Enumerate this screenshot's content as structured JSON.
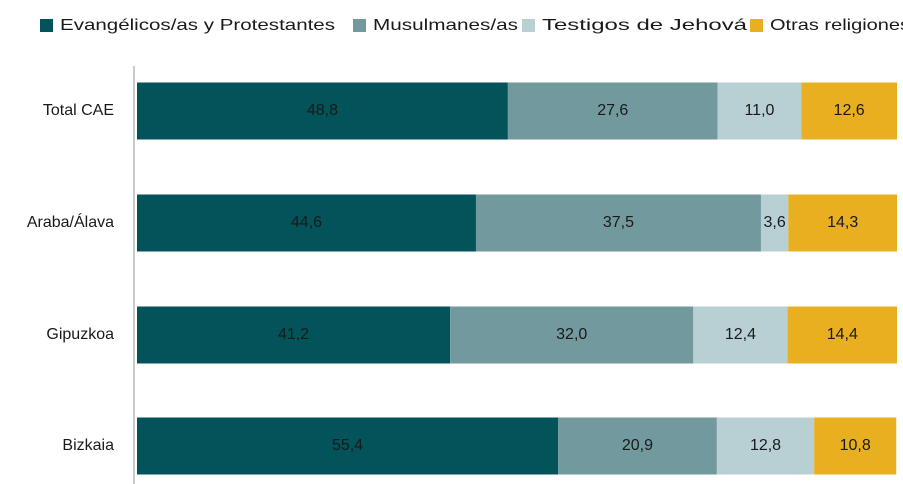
{
  "chart_data": {
    "type": "stacked-bar-horizontal",
    "categories": [
      "Total CAE",
      "Araba/Álava",
      "Gipuzkoa",
      "Bizkaia"
    ],
    "xlim": [
      0,
      100
    ],
    "legend": "top",
    "series": [
      {
        "name": "Evangélicos/as y Protestantes",
        "color": "#03535a",
        "label_color": "#ffffff",
        "values": [
          48.8,
          44.6,
          41.2,
          55.4
        ],
        "value_labels": [
          "48,8",
          "44,6",
          "41,2",
          "55,4"
        ]
      },
      {
        "name": "Musulmanes/as",
        "color": "#72999e",
        "label_color": "#ffffff",
        "values": [
          27.6,
          37.5,
          32.0,
          20.9
        ],
        "value_labels": [
          "27,6",
          "37,5",
          "32,0",
          "20,9"
        ]
      },
      {
        "name": "Testigos de Jehová",
        "color": "#b8cfd3",
        "label_color": "#1a1a1a",
        "values": [
          11.0,
          3.6,
          12.4,
          12.8
        ],
        "value_labels": [
          "11,0",
          "3,6",
          "12,4",
          "12,8"
        ]
      },
      {
        "name": "Otras religiones",
        "color": "#e8b020",
        "label_color": "#1a1a1a",
        "values": [
          12.6,
          14.3,
          14.4,
          10.8
        ],
        "value_labels": [
          "12,6",
          "14,3",
          "14,4",
          "10,8"
        ]
      }
    ]
  }
}
